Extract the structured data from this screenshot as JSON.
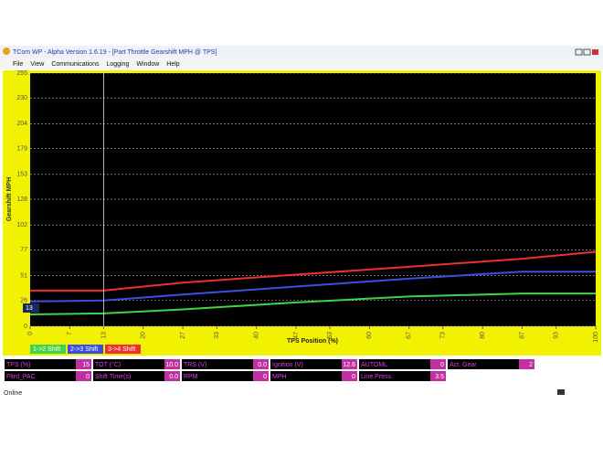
{
  "window": {
    "title": "TCom WP - Alpha Version 1.6.19 - [Part Throttle Gearshift MPH @ TPS]",
    "menu": [
      "File",
      "View",
      "Communications",
      "Logging",
      "Window",
      "Help"
    ],
    "status": "Online"
  },
  "chart_data": {
    "type": "line",
    "ylabel": "Gearshift MPH",
    "xlabel": "TPS Position (%)",
    "xlim": [
      0,
      100
    ],
    "ylim": [
      0,
      255
    ],
    "xticks": [
      0,
      7,
      13,
      20,
      27,
      33,
      40,
      47,
      53,
      60,
      67,
      73,
      80,
      87,
      93,
      100
    ],
    "yticks": [
      0,
      26,
      51,
      77,
      102,
      128,
      153,
      179,
      204,
      230,
      255
    ],
    "grid": true,
    "cursor": 13,
    "x": [
      0,
      13,
      27,
      47,
      67,
      87,
      100
    ],
    "series": [
      {
        "name": "1->2 Shift",
        "color": "#3fd44a",
        "values": [
          12,
          13,
          17,
          24,
          30,
          33,
          33
        ]
      },
      {
        "name": "2->3 Shift",
        "color": "#3a4fe0",
        "values": [
          25,
          26,
          32,
          40,
          48,
          55,
          55
        ]
      },
      {
        "name": "3->4 Shift",
        "color": "#f03030",
        "values": [
          36,
          36,
          44,
          52,
          60,
          68,
          75
        ]
      }
    ]
  },
  "status_panel": {
    "rows": [
      [
        {
          "label": "TPS (%)",
          "value": "15"
        },
        {
          "label": "TOT (°C)",
          "value": "10.0"
        },
        {
          "label": "TRS (V)",
          "value": "0.0"
        },
        {
          "label": "Ignition (V)",
          "value": "12.6"
        },
        {
          "label": "AUTOML",
          "value": "0"
        },
        {
          "label": "Act. Gear",
          "value": "2"
        }
      ],
      [
        {
          "label": "Fltrd_PAC",
          "value": "0"
        },
        {
          "label": "Shift Time(s)",
          "value": "0.0"
        },
        {
          "label": "RPM",
          "value": "0"
        },
        {
          "label": "MPH",
          "value": "0"
        },
        {
          "label": "Line Press.",
          "value": "3.5"
        }
      ]
    ]
  }
}
